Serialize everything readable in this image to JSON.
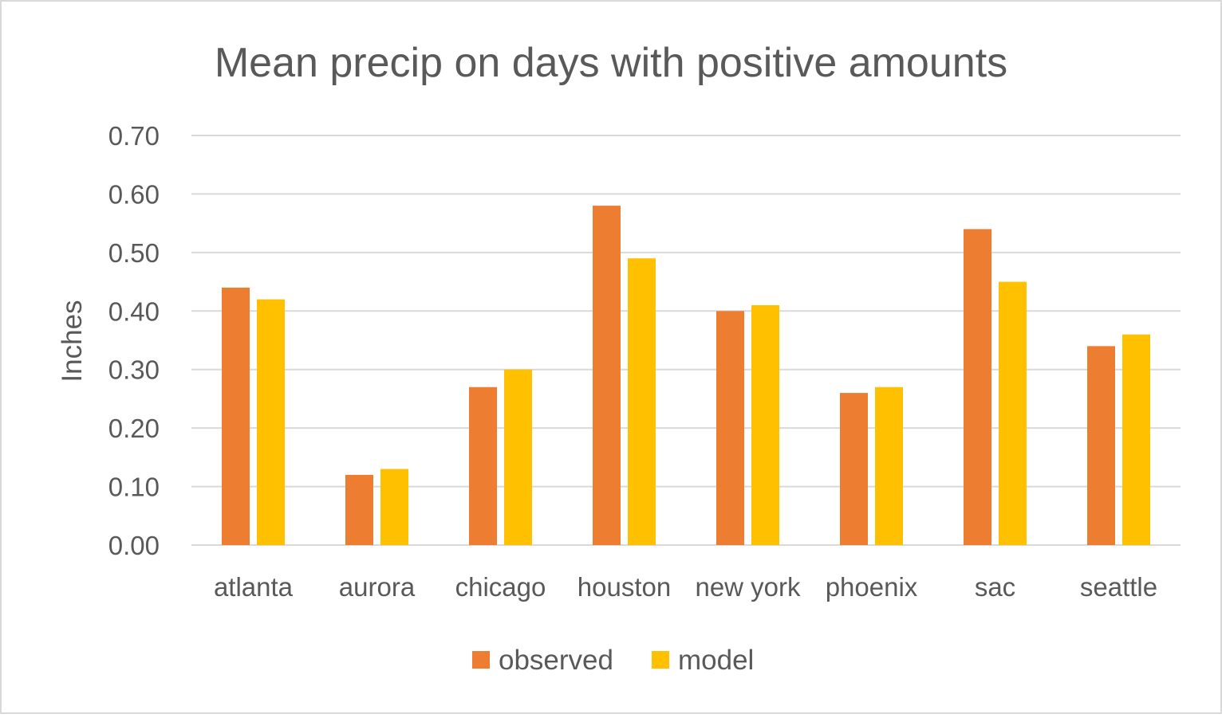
{
  "chart_data": {
    "type": "bar",
    "title": "Mean precip on days with positive amounts",
    "ylabel": "Inches",
    "xlabel": "",
    "ylim": [
      0,
      0.7
    ],
    "yticks": [
      "0.00",
      "0.10",
      "0.20",
      "0.30",
      "0.40",
      "0.50",
      "0.60",
      "0.70"
    ],
    "ytick_values": [
      0,
      0.1,
      0.2,
      0.3,
      0.4,
      0.5,
      0.6,
      0.7
    ],
    "grid": true,
    "legend_position": "bottom",
    "categories": [
      "atlanta",
      "aurora",
      "chicago",
      "houston",
      "new york",
      "phoenix",
      "sac",
      "seattle"
    ],
    "series": [
      {
        "name": "observed",
        "color": "#ED7D31",
        "values": [
          0.44,
          0.12,
          0.27,
          0.58,
          0.4,
          0.26,
          0.54,
          0.34
        ]
      },
      {
        "name": "model",
        "color": "#FFC000",
        "values": [
          0.42,
          0.13,
          0.3,
          0.49,
          0.41,
          0.27,
          0.45,
          0.36
        ]
      }
    ]
  }
}
